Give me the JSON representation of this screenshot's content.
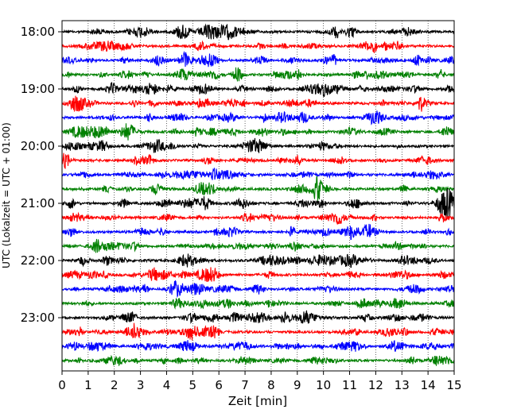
{
  "chart_data": {
    "type": "line",
    "xlabel": "Zeit  [min]",
    "ylabel": "UTC (Lokalzeit = UTC + 01:00)",
    "x_ticks": [
      0,
      1,
      2,
      3,
      4,
      5,
      6,
      7,
      8,
      9,
      10,
      11,
      12,
      13,
      14,
      15
    ],
    "xlim": [
      0,
      15
    ],
    "y_ticks": [
      {
        "label": "18:00",
        "trace_index": 0
      },
      {
        "label": "19:00",
        "trace_index": 4
      },
      {
        "label": "20:00",
        "trace_index": 8
      },
      {
        "label": "21:00",
        "trace_index": 12
      },
      {
        "label": "22:00",
        "trace_index": 16
      },
      {
        "label": "23:00",
        "trace_index": 20
      }
    ],
    "trace_count": 24,
    "trace_interval_minutes": 15,
    "trace_colors": [
      "#000000",
      "#ff0000",
      "#0000ff",
      "#008000"
    ],
    "grid": "vertical dotted at each minute",
    "legend": "none"
  }
}
